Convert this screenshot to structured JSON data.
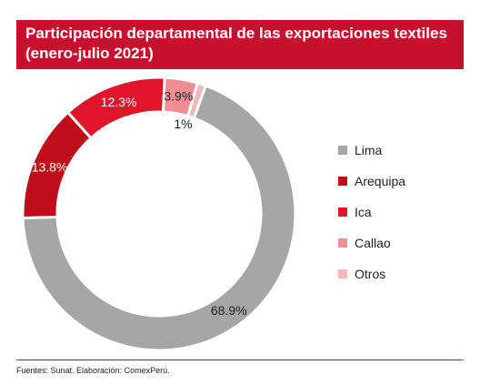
{
  "title": "Participación departamental de las exportaciones textiles (enero-julio 2021)",
  "source": "Fuentes: Sunat. Elaboración: ComexPerú.",
  "colors": {
    "title_bg": "#c8102e",
    "lima": "#a6a6a6",
    "arequipa": "#c00d1c",
    "ica": "#e0142b",
    "callao": "#ef8e93",
    "otros": "#f4b7ba"
  },
  "chart_data": {
    "type": "pie",
    "donut": true,
    "legend_position": "right",
    "slices": [
      {
        "name": "Lima",
        "value": 68.9,
        "label": "68.9%",
        "color": "#a6a6a6",
        "label_color": "#222222"
      },
      {
        "name": "Arequipa",
        "value": 13.8,
        "label": "13.8%",
        "color": "#c00d1c",
        "label_color": "#ffffff"
      },
      {
        "name": "Ica",
        "value": 12.3,
        "label": "12.3%",
        "color": "#e0142b",
        "label_color": "#ffffff"
      },
      {
        "name": "Callao",
        "value": 3.9,
        "label": "3.9%",
        "color": "#ef8e93",
        "label_color": "#222222"
      },
      {
        "name": "Otros",
        "value": 1,
        "label": "1%",
        "color": "#f4b7ba",
        "label_color": "#222222"
      }
    ]
  }
}
